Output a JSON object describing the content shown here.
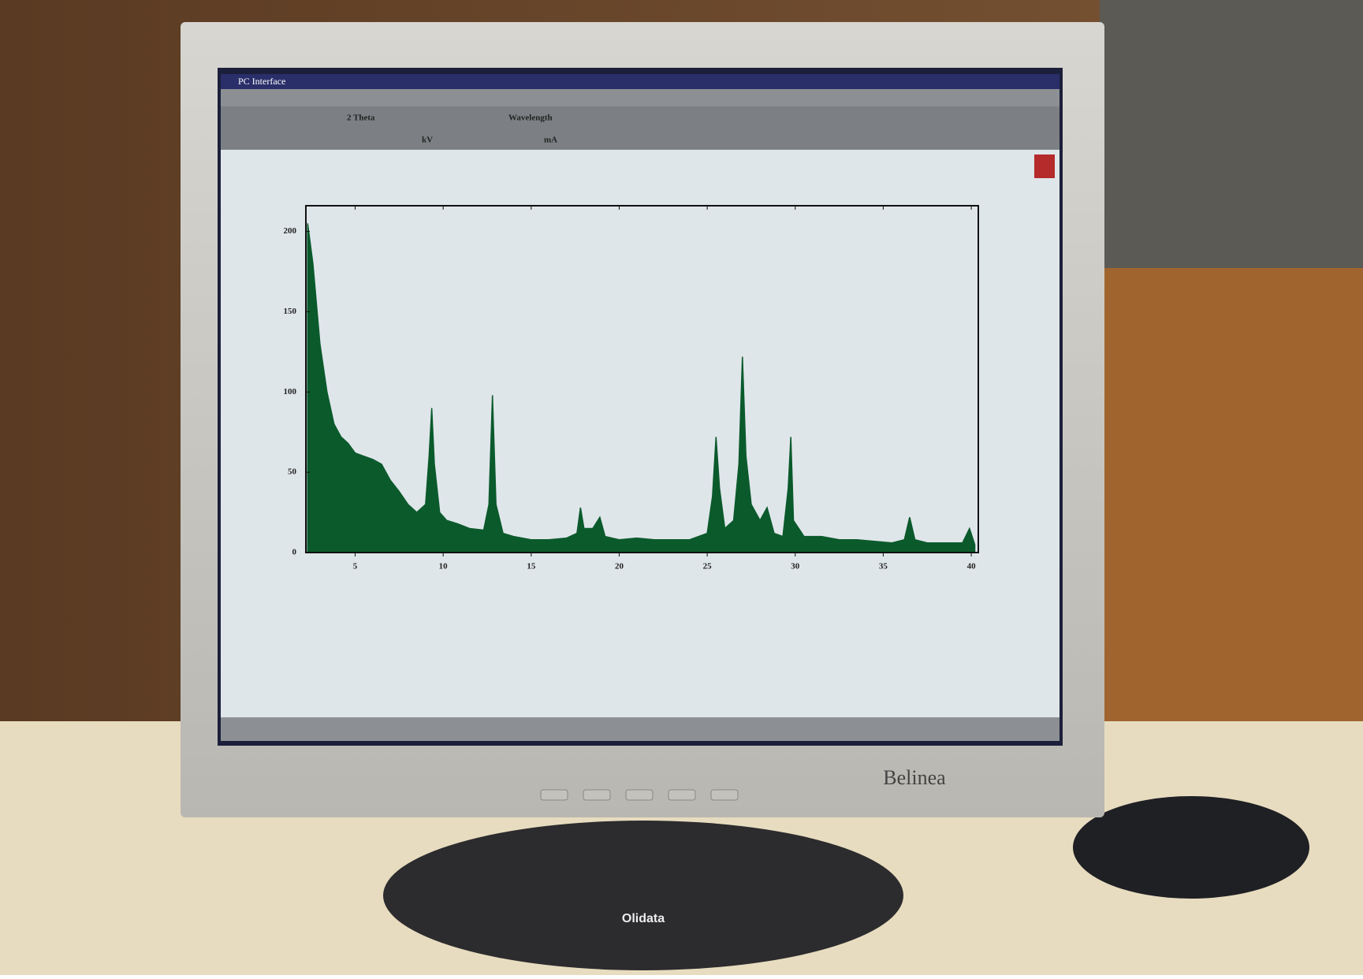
{
  "window": {
    "title": "PC Interface",
    "fields": [
      "2 Theta",
      "Wavelength",
      "kV",
      "mA"
    ]
  },
  "monitor": {
    "brand": "Belinea",
    "stand_label": "Olidata"
  },
  "chart_data": {
    "type": "area",
    "color": "#0b5a2c",
    "x": [
      2.3,
      2.6,
      3.0,
      3.4,
      3.8,
      4.2,
      4.6,
      5.0,
      5.5,
      6.0,
      6.5,
      7.0,
      7.5,
      8.0,
      8.5,
      9.0,
      9.2,
      9.35,
      9.5,
      9.8,
      10.2,
      10.8,
      11.5,
      12.3,
      12.6,
      12.8,
      13.0,
      13.4,
      14,
      15,
      16,
      17,
      17.6,
      17.8,
      18.0,
      18.5,
      18.9,
      19.2,
      20,
      21,
      22,
      23,
      24,
      25,
      25.3,
      25.5,
      25.7,
      26.0,
      26.5,
      26.8,
      27.0,
      27.2,
      27.5,
      28,
      28.4,
      28.8,
      29.3,
      29.6,
      29.75,
      29.9,
      30.5,
      31.5,
      32.5,
      33.5,
      34.5,
      35.5,
      36.2,
      36.5,
      36.8,
      37.5,
      38.5,
      39.5,
      39.9,
      40.2
    ],
    "values": [
      205,
      180,
      130,
      100,
      80,
      72,
      68,
      62,
      60,
      58,
      55,
      45,
      38,
      30,
      25,
      30,
      60,
      90,
      55,
      25,
      20,
      18,
      15,
      14,
      30,
      98,
      30,
      12,
      10,
      8,
      8,
      9,
      12,
      28,
      15,
      15,
      22,
      10,
      8,
      9,
      8,
      8,
      8,
      12,
      35,
      72,
      40,
      15,
      20,
      55,
      122,
      60,
      30,
      20,
      28,
      12,
      10,
      40,
      72,
      20,
      10,
      10,
      8,
      8,
      7,
      6,
      8,
      22,
      8,
      6,
      6,
      6,
      15,
      5
    ],
    "xlim": [
      2.2,
      40.4
    ],
    "ylim": [
      0,
      216
    ],
    "xticks": [
      5,
      10,
      15,
      20,
      25,
      30,
      35,
      40
    ],
    "yticks": [
      0,
      50,
      100,
      150,
      200
    ],
    "grid": false
  }
}
